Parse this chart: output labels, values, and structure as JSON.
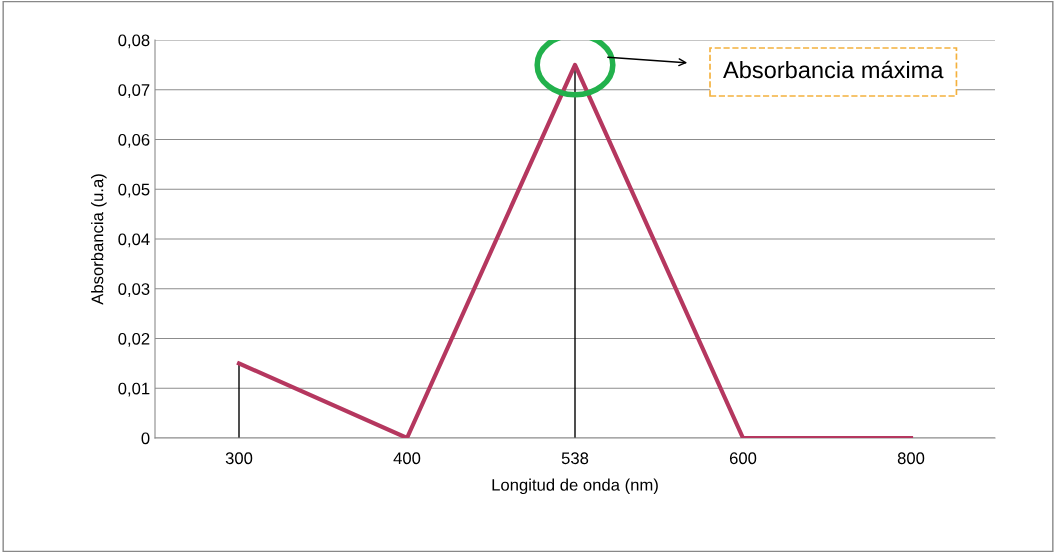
{
  "chart_data": {
    "type": "line",
    "xlabel": "Longitud de onda (nm)",
    "ylabel": "Absorbancia (u.a)",
    "categories": [
      "300",
      "400",
      "538",
      "600",
      "800"
    ],
    "series": [
      {
        "color": "#b5375f",
        "values": [
          0.015,
          0,
          0.075,
          0,
          0
        ]
      }
    ],
    "ylim": [
      0,
      0.08
    ],
    "yticks": [
      0,
      {
        "value": 0.01,
        "label": "0,01"
      },
      {
        "value": 0.02,
        "label": "0,02"
      },
      {
        "value": 0.03,
        "label": "0,03"
      },
      {
        "value": 0.04,
        "label": "0,04"
      },
      {
        "value": 0.05,
        "label": "0,05"
      },
      {
        "value": 0.06,
        "label": "0,06"
      },
      {
        "value": 0.07,
        "label": "0,07"
      },
      {
        "value": 0.08,
        "label": "0,08"
      }
    ],
    "grid": "y",
    "marker": "none",
    "line_style": "solid",
    "ref_lines": [
      {
        "axis": "x",
        "value": "300",
        "color": "#000000"
      },
      {
        "axis": "x",
        "value": "538",
        "color": "#000000"
      }
    ],
    "annotations": [
      "Absorbancia máxima"
    ]
  }
}
